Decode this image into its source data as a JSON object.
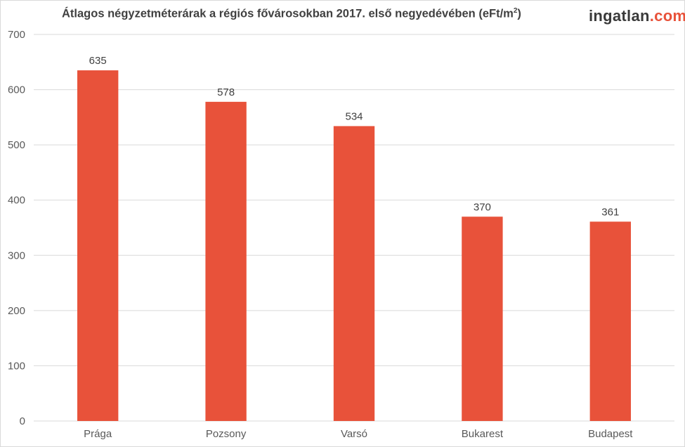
{
  "chart_data": {
    "type": "bar",
    "title": "Átlagos négyzetméterárak a régiós fővárosokban 2017. első negyedévében (eFt/m",
    "title_sup": "2",
    "title_tail": ")",
    "categories": [
      "Prága",
      "Pozsony",
      "Varsó",
      "Bukarest",
      "Budapest"
    ],
    "values": [
      635,
      578,
      534,
      370,
      361
    ],
    "ylim": [
      0,
      700
    ],
    "yticks": [
      0,
      100,
      200,
      300,
      400,
      500,
      600,
      700
    ],
    "grid": true,
    "bar_color": "#e8523a",
    "grid_color": "#d9d9d9"
  },
  "logo": {
    "part1": "ingatlan",
    "part2": ".com"
  }
}
